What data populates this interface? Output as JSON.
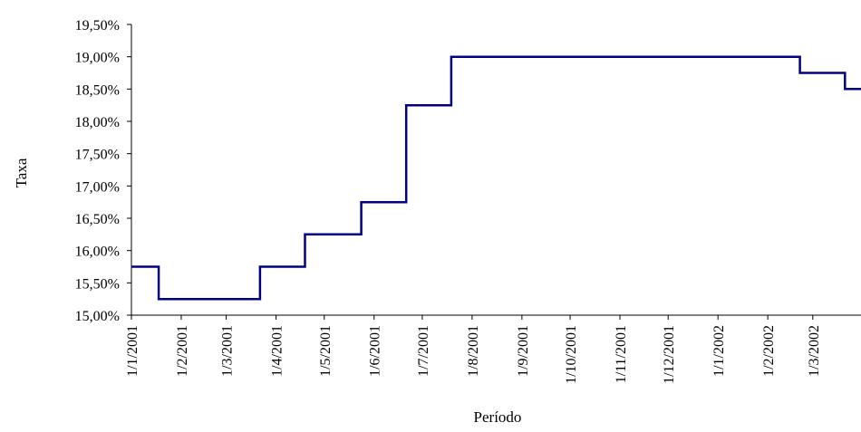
{
  "chart_data": {
    "type": "line",
    "title": "",
    "xlabel": "Período",
    "ylabel": "Taxa",
    "ylim": [
      15.0,
      19.5
    ],
    "xlim": [
      "2001-01-01",
      "2002-03-31"
    ],
    "y_ticks": [
      "15,00%",
      "15,50%",
      "16,00%",
      "16,50%",
      "17,00%",
      "17,50%",
      "18,00%",
      "18,50%",
      "19,00%",
      "19,50%"
    ],
    "y_tick_values": [
      15.0,
      15.5,
      16.0,
      16.5,
      17.0,
      17.5,
      18.0,
      18.5,
      19.0,
      19.5
    ],
    "x_ticks": [
      "1/1/2001",
      "1/2/2001",
      "1/3/2001",
      "1/4/2001",
      "1/5/2001",
      "1/6/2001",
      "1/7/2001",
      "1/8/2001",
      "1/9/2001",
      "1/10/2001",
      "1/11/2001",
      "1/12/2001",
      "1/1/2002",
      "1/2/2002",
      "1/3/2002"
    ],
    "x_tick_dates": [
      "2001-01-01",
      "2001-02-01",
      "2001-03-01",
      "2001-04-01",
      "2001-05-01",
      "2001-06-01",
      "2001-07-01",
      "2001-08-01",
      "2001-09-01",
      "2001-10-01",
      "2001-11-01",
      "2001-12-01",
      "2002-01-01",
      "2002-02-01",
      "2002-03-01"
    ],
    "grid": false,
    "line_color": "#000080",
    "series": [
      {
        "x": [
          "2001-01-01",
          "2001-01-18",
          "2001-01-18",
          "2001-03-22",
          "2001-03-22",
          "2001-04-19",
          "2001-04-19",
          "2001-05-24",
          "2001-05-24",
          "2001-06-21",
          "2001-06-21",
          "2001-07-19",
          "2001-07-19",
          "2002-02-21",
          "2002-02-21",
          "2002-03-21",
          "2002-03-21",
          "2002-03-31"
        ],
        "y": [
          15.75,
          15.75,
          15.25,
          15.25,
          15.75,
          15.75,
          16.25,
          16.25,
          16.75,
          16.75,
          18.25,
          18.25,
          19.0,
          19.0,
          18.75,
          18.75,
          18.5,
          18.5
        ]
      }
    ]
  }
}
